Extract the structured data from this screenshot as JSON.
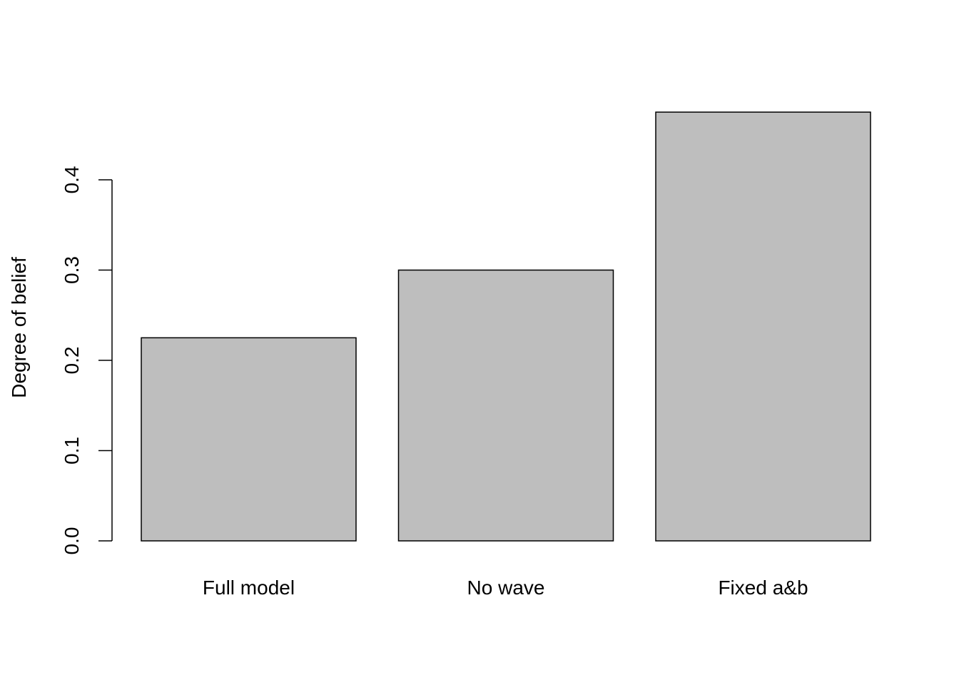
{
  "chart_data": {
    "type": "bar",
    "categories": [
      "Full model",
      "No wave",
      "Fixed a&b"
    ],
    "values": [
      0.225,
      0.3,
      0.475
    ],
    "title": "",
    "xlabel": "",
    "ylabel": "Degree of belief",
    "ylim": [
      0,
      0.475
    ],
    "yticks": [
      0.0,
      0.1,
      0.2,
      0.3,
      0.4
    ],
    "ytick_labels": [
      "0.0",
      "0.1",
      "0.2",
      "0.3",
      "0.4"
    ],
    "bar_color": "#bebebe",
    "bar_border_color": "#000000",
    "grid": false,
    "legend": "none"
  }
}
